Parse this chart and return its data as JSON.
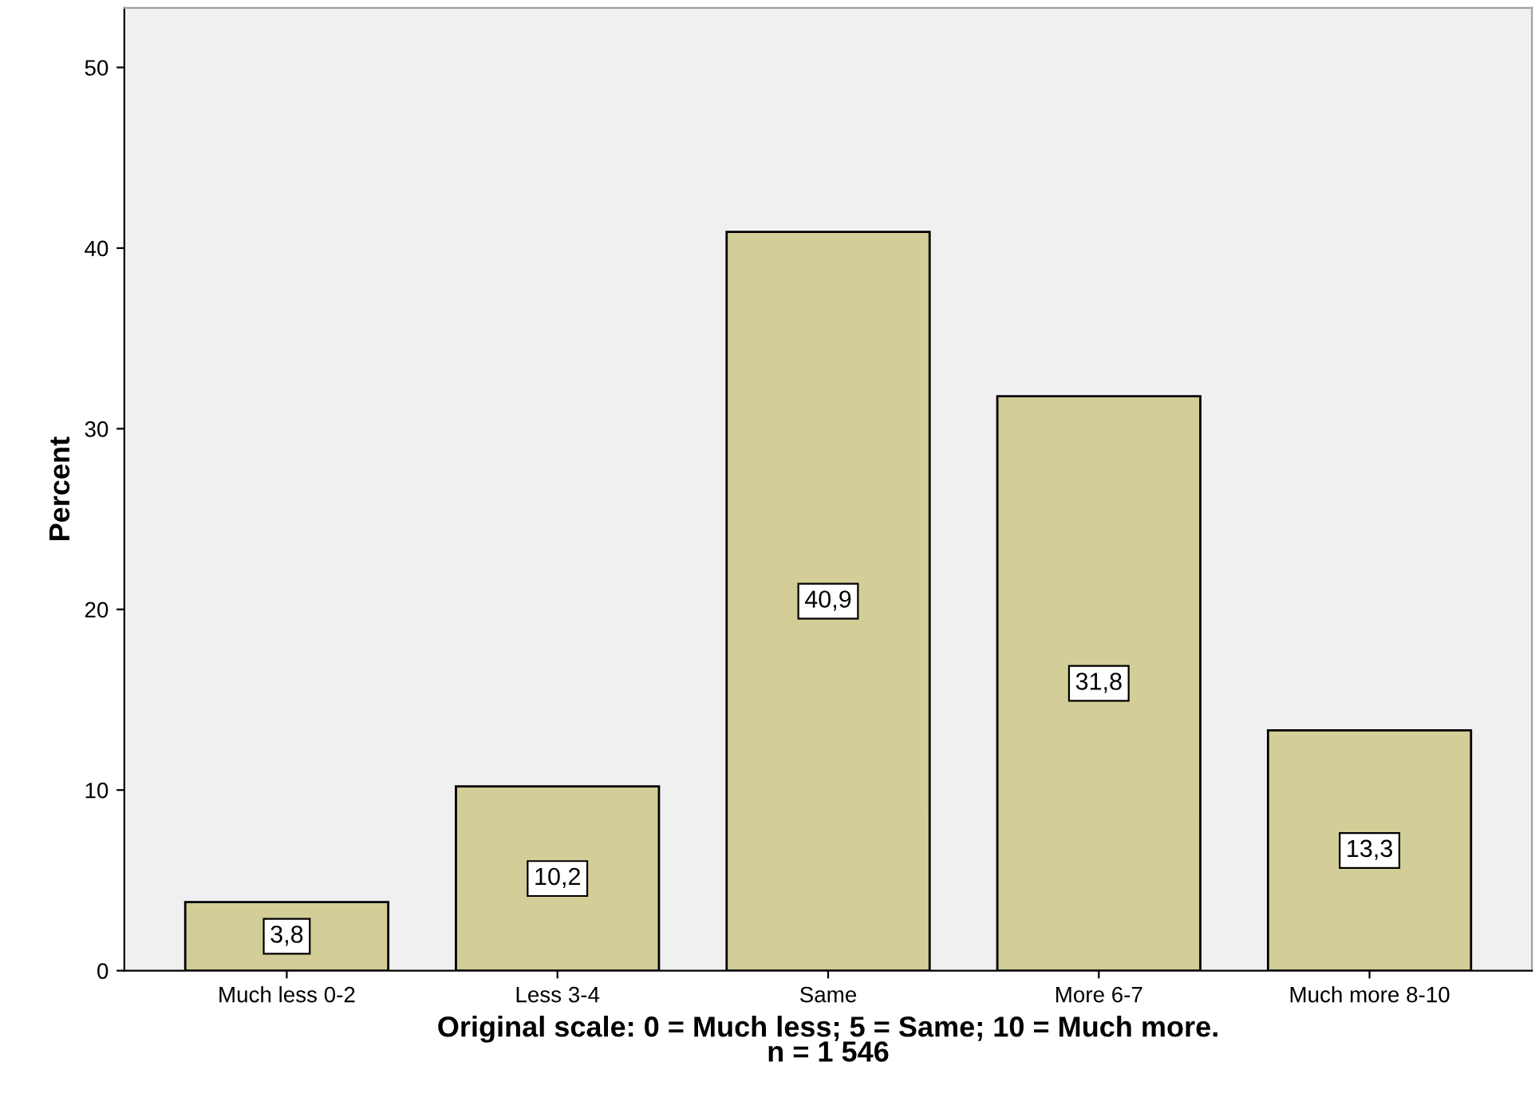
{
  "chart_data": {
    "type": "bar",
    "categories": [
      "Much less 0-2",
      "Less 3-4",
      "Same",
      "More 6-7",
      "Much more 8-10"
    ],
    "values": [
      3.8,
      10.2,
      40.9,
      31.8,
      13.3
    ],
    "value_labels": [
      "3,8",
      "10,2",
      "40,9",
      "31,8",
      "13,3"
    ],
    "color": "#d3ce98",
    "ylabel": "Percent",
    "xlabel": "Original scale: 0 = Much less; 5 = Same; 10 = Much more.\nn = 1 546",
    "ylim": [
      0,
      53.3
    ],
    "yticks": [
      0,
      10,
      20,
      30,
      40,
      50
    ],
    "grid": false,
    "legend": false
  }
}
